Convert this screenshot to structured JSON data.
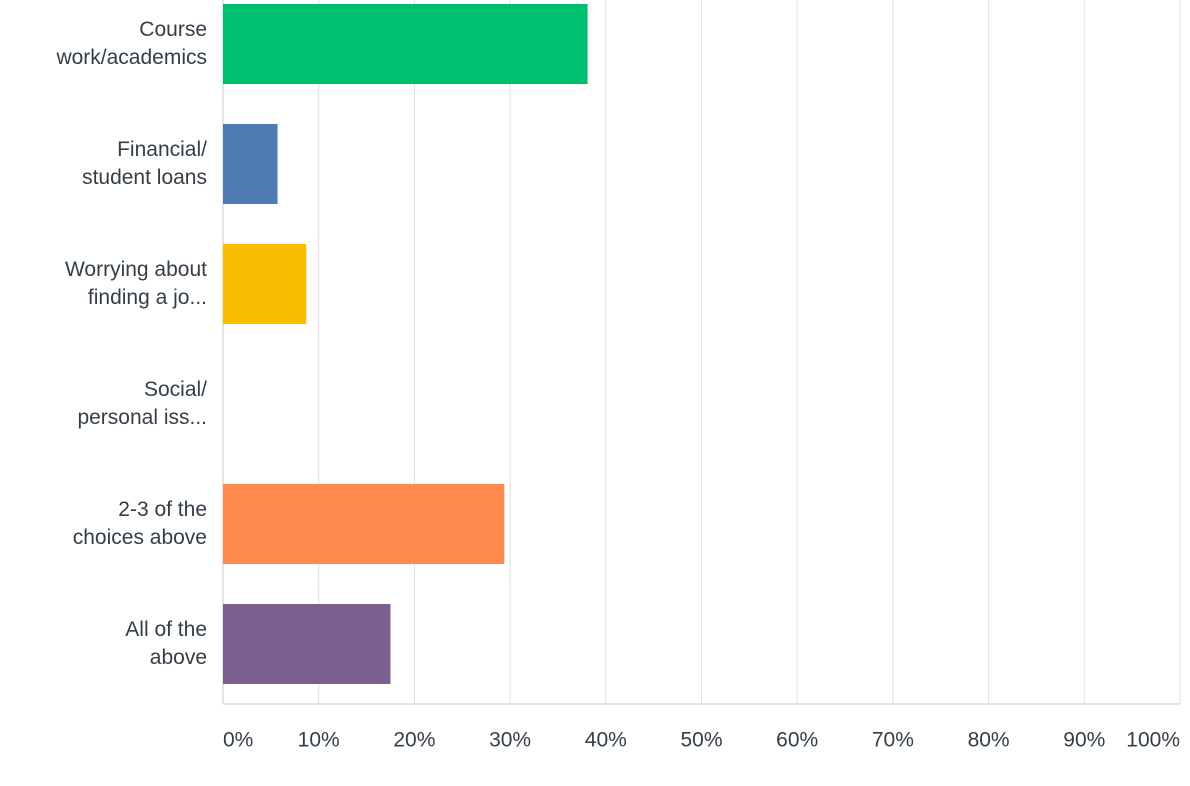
{
  "chart_data": {
    "type": "bar",
    "orientation": "horizontal",
    "categories": [
      "Course\nwork/academics",
      "Financial/\nstudent loans",
      "Worrying about\nfinding a jo...",
      "Social/\npersonal iss...",
      "2-3 of the\nchoices above",
      "All of the\nabove"
    ],
    "values": [
      38.1,
      5.7,
      8.7,
      0,
      29.4,
      17.5
    ],
    "colors": [
      "#00bf6f",
      "#507cb6",
      "#f9be00",
      "#6bc8cd",
      "#ff8b4f",
      "#7d5e90"
    ],
    "xlim": [
      0,
      100
    ],
    "xticks": [
      {
        "value": 0,
        "label": "0%"
      },
      {
        "value": 10,
        "label": "10%"
      },
      {
        "value": 20,
        "label": "20%"
      },
      {
        "value": 30,
        "label": "30%"
      },
      {
        "value": 40,
        "label": "40%"
      },
      {
        "value": 50,
        "label": "50%"
      },
      {
        "value": 60,
        "label": "60%"
      },
      {
        "value": 70,
        "label": "70%"
      },
      {
        "value": 80,
        "label": "80%"
      },
      {
        "value": 90,
        "label": "90%"
      },
      {
        "value": 100,
        "label": "100%"
      }
    ],
    "grid": true
  }
}
